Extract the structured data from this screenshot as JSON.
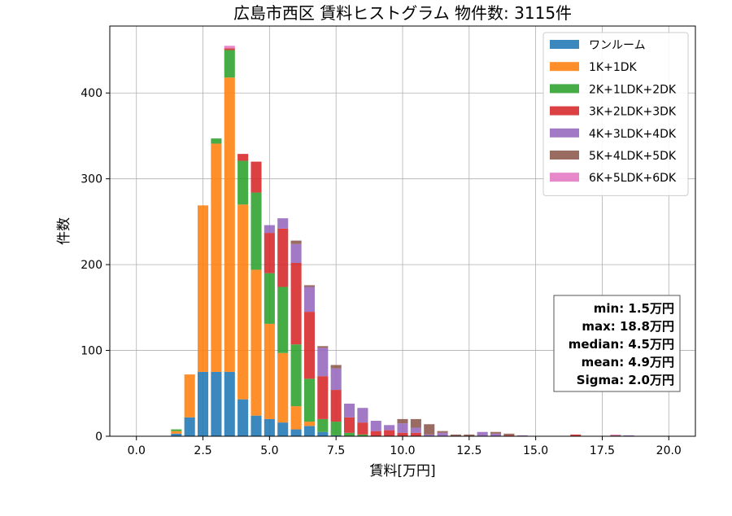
{
  "chart_data": {
    "type": "bar",
    "title": "広島市西区 賃料ヒストグラム 物件数: 3115件",
    "xlabel": "賃料[万円]",
    "ylabel": "件数",
    "xlim": [
      -1.0,
      21.0
    ],
    "ylim": [
      0,
      478
    ],
    "xticks": [
      "0.0",
      "2.5",
      "5.0",
      "7.5",
      "10.0",
      "12.5",
      "15.0",
      "17.5",
      "20.0"
    ],
    "yticks": [
      "0",
      "100",
      "200",
      "300",
      "400"
    ],
    "grid": true,
    "legend_position": "top-right",
    "bin_width": 0.5,
    "bin_starts": [
      1.25,
      1.75,
      2.25,
      2.75,
      3.25,
      3.75,
      4.25,
      4.75,
      5.25,
      5.75,
      6.25,
      6.75,
      7.25,
      7.75,
      8.25,
      8.75,
      9.25,
      9.75,
      10.25,
      10.75,
      11.25,
      11.75,
      12.25,
      12.75,
      13.25,
      13.75,
      14.25,
      14.75,
      15.25,
      15.75,
      16.25,
      16.75,
      17.25,
      17.75,
      18.25
    ],
    "series": [
      {
        "name": "ワンルーム",
        "color": "#1f77b4",
        "values": [
          3,
          22,
          75,
          75,
          75,
          43,
          24,
          20,
          16,
          8,
          12,
          5,
          1,
          0,
          0,
          0,
          0,
          0,
          0,
          0,
          0,
          0,
          0,
          0,
          0,
          0,
          0,
          0,
          0,
          0,
          0,
          0,
          0,
          0,
          0
        ]
      },
      {
        "name": "1K+1DK",
        "color": "#ff7f0e",
        "values": [
          3,
          50,
          194,
          266,
          343,
          227,
          170,
          111,
          81,
          27,
          5,
          0,
          0,
          0,
          0,
          0,
          0,
          0,
          0,
          0,
          0,
          0,
          0,
          0,
          0,
          0,
          0,
          0,
          0,
          0,
          0,
          0,
          0,
          0,
          0
        ]
      },
      {
        "name": "2K+1LDK+2DK",
        "color": "#2ca02c",
        "values": [
          2,
          0,
          0,
          6,
          32,
          51,
          90,
          59,
          77,
          72,
          50,
          15,
          16,
          4,
          2,
          0,
          0,
          0,
          0,
          0,
          0,
          0,
          0,
          0,
          0,
          0,
          0,
          0,
          0,
          0,
          0,
          0,
          0,
          0,
          0
        ]
      },
      {
        "name": "3K+2LDK+3DK",
        "color": "#d62728",
        "values": [
          0,
          0,
          0,
          0,
          2,
          8,
          36,
          47,
          68,
          95,
          78,
          50,
          37,
          18,
          14,
          6,
          7,
          4,
          4,
          0,
          0,
          0,
          0,
          0,
          0,
          1,
          0,
          0,
          0,
          0,
          2,
          0,
          0,
          0,
          0
        ]
      },
      {
        "name": "4K+3LDK+4DK",
        "color": "#9467bd",
        "values": [
          0,
          0,
          0,
          0,
          0,
          0,
          0,
          9,
          12,
          22,
          29,
          33,
          25,
          16,
          17,
          12,
          6,
          11,
          6,
          2,
          4,
          0,
          0,
          5,
          3,
          0,
          1,
          0,
          0,
          0,
          0,
          0,
          0,
          0,
          1
        ]
      },
      {
        "name": "5K+4LDK+5DK",
        "color": "#8c564b",
        "values": [
          0,
          0,
          0,
          0,
          0,
          0,
          0,
          0,
          0,
          4,
          2,
          2,
          4,
          0,
          0,
          0,
          0,
          5,
          10,
          12,
          2,
          2,
          2,
          0,
          2,
          2,
          0,
          0,
          0,
          0,
          0,
          0,
          0,
          1,
          0
        ]
      },
      {
        "name": "6K+5LDK+6DK",
        "color": "#e377c2",
        "values": [
          0,
          0,
          0,
          0,
          3,
          0,
          0,
          0,
          0,
          0,
          0,
          0,
          0,
          0,
          0,
          0,
          0,
          0,
          0,
          0,
          0,
          0,
          0,
          0,
          0,
          0,
          0,
          0,
          0,
          0,
          0,
          0,
          0,
          1,
          0
        ]
      }
    ]
  },
  "stats": {
    "min": "min: 1.5万円",
    "max": "max: 18.8万円",
    "median": "median: 4.5万円",
    "mean": "mean: 4.9万円",
    "sigma": "Sigma: 2.0万円"
  }
}
